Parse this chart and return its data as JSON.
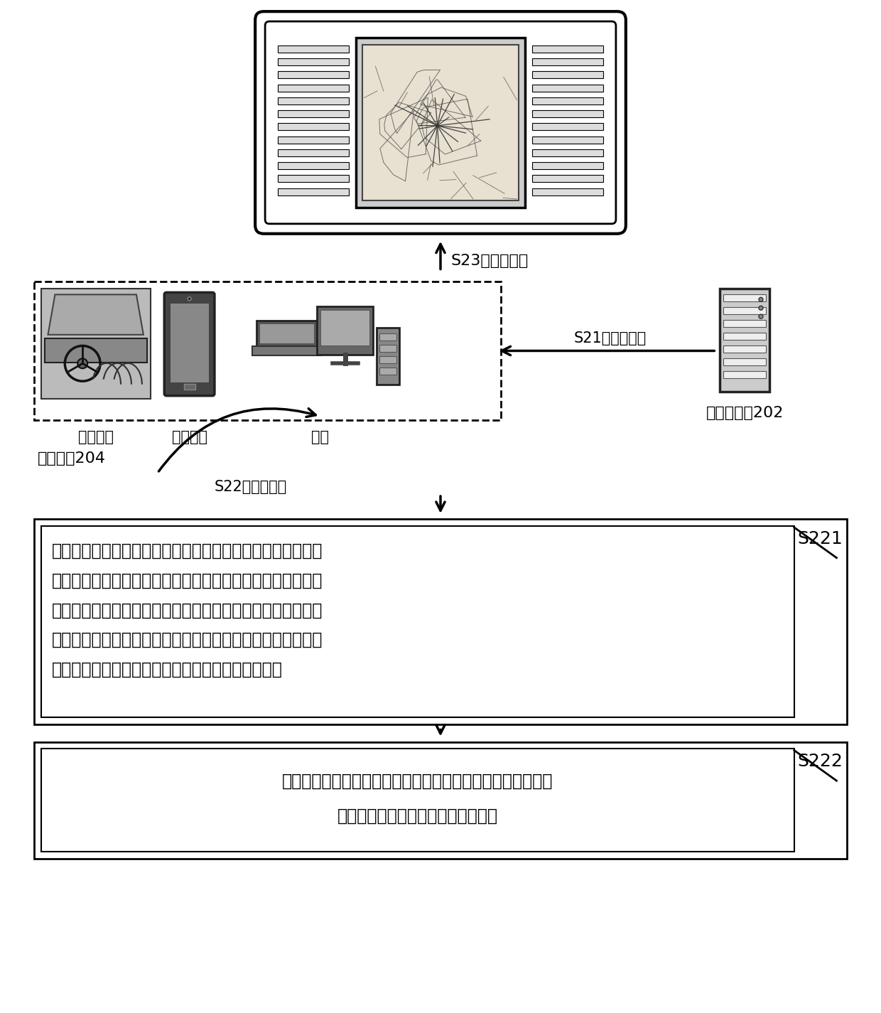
{
  "bg_color": "#ffffff",
  "s23_label": "S23，显示地图",
  "s21_label": "S21，地图数据",
  "s22_label": "S22，渲染处理",
  "user_terminal_label": "用户终端204",
  "map_server_label": "地图服务器202",
  "vehicle_label": "车载终端",
  "mobile_label": "移动终端",
  "pc_label": "电脑",
  "s221_label": "S221",
  "s222_label": "S222",
  "s221_text_lines": [
    "在地图中查找第一坐标点和第二坐标点，第一区域上第一顶点",
    "所在的第一边与第二区域上第二顶点所在的第二边相交于第一",
    "坐标点，第一区域上第一顶点所在的第三边的延长线与第二区",
    "域上第二顶点所在的第四边的延长线相交于第二坐标点，第一",
    "区域用于表示第一路段，第二区域用于表示第二路段"
  ],
  "s222_text_lines": [
    "根据第一坐标点、第二坐标点、第一顶点和第二顶点，渲染出",
    "用于连接第一顶点和第二顶点的弧线"
  ]
}
